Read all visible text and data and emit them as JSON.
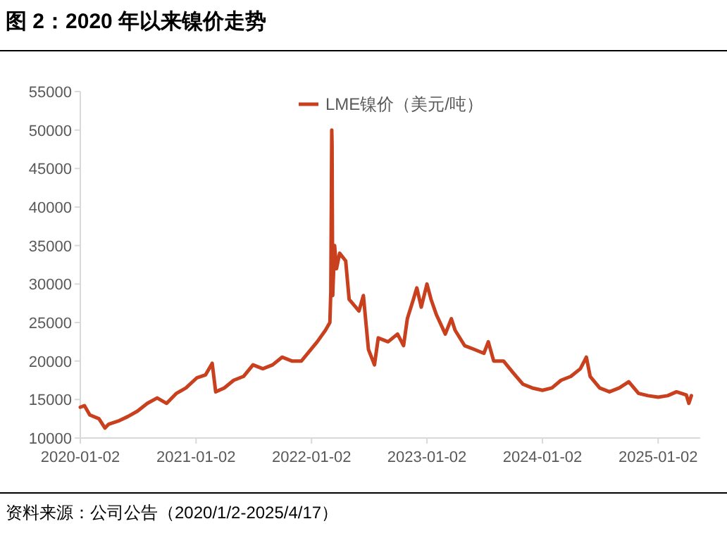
{
  "chart_data": {
    "type": "line",
    "title": "图 2：2020 年以来镍价走势",
    "annotations": [
      "资料来源：公司公告（2020/1/2-2025/4/17）"
    ],
    "legend": "top",
    "xlim": [
      "2020-01-02",
      "2025-05-15"
    ],
    "xticks": [
      "2020-01-02",
      "2021-01-02",
      "2022-01-02",
      "2023-01-02",
      "2024-01-02",
      "2025-01-02"
    ],
    "ylim": [
      10000,
      55000
    ],
    "yticks": [
      10000,
      15000,
      20000,
      25000,
      30000,
      35000,
      40000,
      45000,
      50000,
      55000
    ],
    "series": [
      {
        "name": "LME镍价（美元/吨）",
        "color": "#c8401e",
        "x": [
          "2020-01-02",
          "2020-01-15",
          "2020-02-01",
          "2020-03-01",
          "2020-03-20",
          "2020-04-01",
          "2020-05-01",
          "2020-06-01",
          "2020-07-01",
          "2020-08-01",
          "2020-09-01",
          "2020-10-01",
          "2020-11-01",
          "2020-12-01",
          "2021-01-04",
          "2021-02-01",
          "2021-02-22",
          "2021-03-05",
          "2021-04-01",
          "2021-05-01",
          "2021-06-01",
          "2021-07-01",
          "2021-08-01",
          "2021-09-01",
          "2021-10-01",
          "2021-11-01",
          "2021-12-01",
          "2022-01-20",
          "2022-02-15",
          "2022-03-01",
          "2022-03-04",
          "2022-03-07",
          "2022-03-08",
          "2022-03-10",
          "2022-03-16",
          "2022-03-22",
          "2022-04-01",
          "2022-04-20",
          "2022-05-01",
          "2022-06-01",
          "2022-06-15",
          "2022-07-01",
          "2022-07-20",
          "2022-08-01",
          "2022-09-01",
          "2022-10-01",
          "2022-10-20",
          "2022-11-01",
          "2022-11-20",
          "2022-12-01",
          "2022-12-15",
          "2023-01-02",
          "2023-01-15",
          "2023-02-01",
          "2023-03-01",
          "2023-03-20",
          "2023-04-01",
          "2023-05-01",
          "2023-06-01",
          "2023-07-01",
          "2023-07-15",
          "2023-08-01",
          "2023-09-01",
          "2023-10-01",
          "2023-11-01",
          "2023-12-01",
          "2024-01-02",
          "2024-02-01",
          "2024-03-01",
          "2024-04-01",
          "2024-05-01",
          "2024-05-20",
          "2024-06-01",
          "2024-07-01",
          "2024-08-01",
          "2024-09-01",
          "2024-10-01",
          "2024-11-01",
          "2024-12-01",
          "2025-01-02",
          "2025-02-01",
          "2025-03-01",
          "2025-04-01",
          "2025-04-09",
          "2025-04-17"
        ],
        "values": [
          14000,
          14200,
          13000,
          12500,
          11300,
          11800,
          12200,
          12800,
          13500,
          14500,
          15200,
          14500,
          15800,
          16500,
          17800,
          18200,
          19700,
          16000,
          16500,
          17500,
          18000,
          19500,
          19000,
          19500,
          20500,
          20000,
          20000,
          22500,
          24000,
          25000,
          29000,
          50000,
          48000,
          28500,
          35000,
          32000,
          34000,
          33000,
          28000,
          26500,
          28500,
          21500,
          19500,
          23000,
          22500,
          23500,
          22000,
          25500,
          28000,
          29500,
          27000,
          30000,
          28000,
          26000,
          23500,
          25500,
          24000,
          22000,
          21500,
          21000,
          22500,
          20000,
          20000,
          18500,
          17000,
          16500,
          16200,
          16500,
          17500,
          18000,
          19000,
          20500,
          18000,
          16500,
          16000,
          16500,
          17300,
          15800,
          15500,
          15300,
          15500,
          16000,
          15600,
          14500,
          15500
        ]
      }
    ]
  }
}
